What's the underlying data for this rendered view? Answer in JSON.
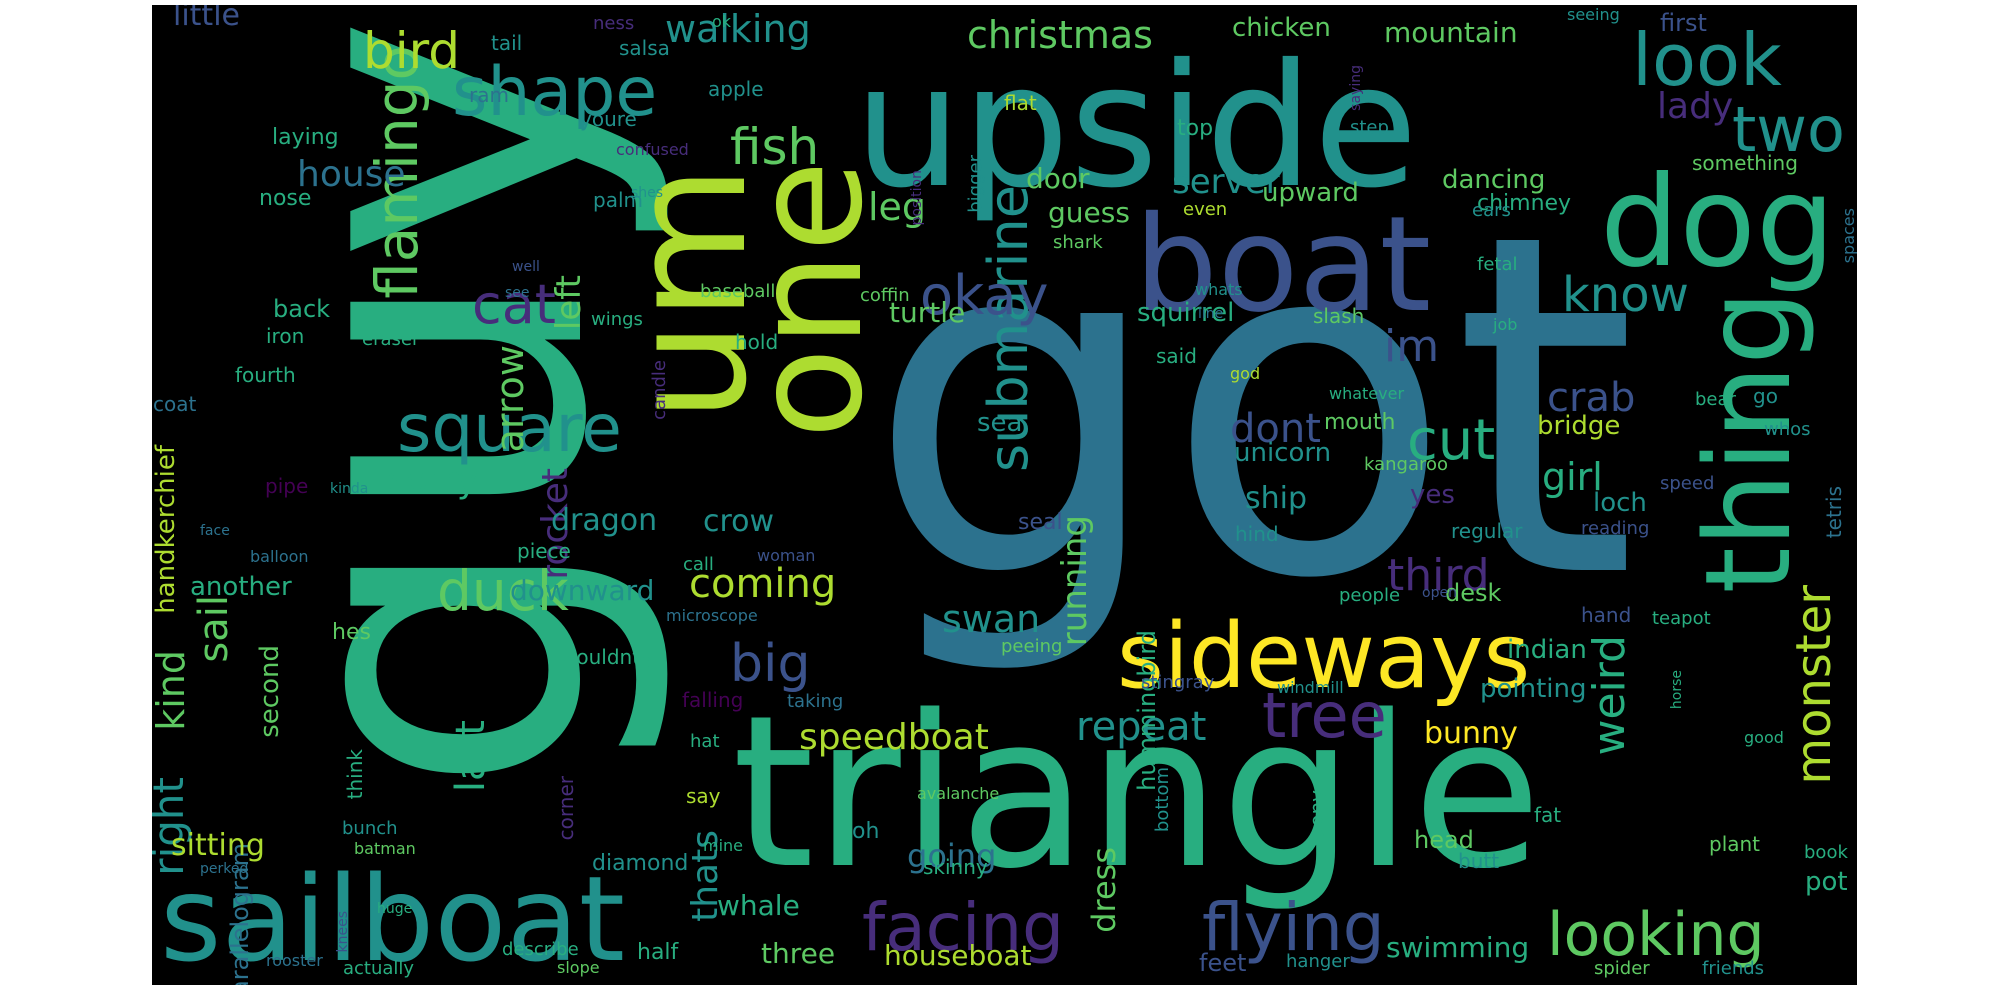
{
  "word_cloud": {
    "background": "#000000",
    "palette": [
      "#440154",
      "#472d7b",
      "#3b528b",
      "#2c728e",
      "#21918c",
      "#28ae80",
      "#5ec962",
      "#addc30",
      "#fde725"
    ],
    "words": [
      {
        "text": "got"
      },
      {
        "text": "guy"
      },
      {
        "text": "upside"
      },
      {
        "text": "triangle"
      },
      {
        "text": "um"
      },
      {
        "text": "one"
      },
      {
        "text": "boat"
      },
      {
        "text": "dog"
      },
      {
        "text": "thing"
      },
      {
        "text": "sailboat"
      },
      {
        "text": "sideways"
      },
      {
        "text": "look"
      },
      {
        "text": "two"
      },
      {
        "text": "shape"
      },
      {
        "text": "square"
      },
      {
        "text": "flamingo"
      },
      {
        "text": "facing"
      },
      {
        "text": "flying"
      },
      {
        "text": "looking"
      },
      {
        "text": "submarine"
      },
      {
        "text": "okay"
      },
      {
        "text": "fish"
      },
      {
        "text": "bird"
      },
      {
        "text": "cat"
      },
      {
        "text": "duck"
      },
      {
        "text": "big"
      },
      {
        "text": "tree"
      },
      {
        "text": "cut"
      },
      {
        "text": "know"
      },
      {
        "text": "monster"
      },
      {
        "text": "weird"
      },
      {
        "text": "walking"
      },
      {
        "text": "christmas"
      },
      {
        "text": "im"
      },
      {
        "text": "right"
      },
      {
        "text": "kind"
      },
      {
        "text": "sail"
      },
      {
        "text": "house"
      },
      {
        "text": "arrow"
      },
      {
        "text": "left"
      },
      {
        "text": "last"
      },
      {
        "text": "dont"
      },
      {
        "text": "crab"
      },
      {
        "text": "third"
      },
      {
        "text": "coming"
      },
      {
        "text": "speedboat"
      },
      {
        "text": "repeat"
      },
      {
        "text": "swan"
      },
      {
        "text": "running"
      },
      {
        "text": "thats"
      },
      {
        "text": "rocket"
      },
      {
        "text": "sorry"
      },
      {
        "text": "girl"
      },
      {
        "text": "server"
      },
      {
        "text": "leg"
      },
      {
        "text": "lady"
      },
      {
        "text": "little"
      },
      {
        "text": "mountain"
      },
      {
        "text": "chicken"
      },
      {
        "text": "door"
      },
      {
        "text": "guess"
      },
      {
        "text": "upward"
      },
      {
        "text": "dancing"
      },
      {
        "text": "chimney"
      },
      {
        "text": "turtle"
      },
      {
        "text": "squirrel"
      },
      {
        "text": "unicorn"
      },
      {
        "text": "ship"
      },
      {
        "text": "bridge"
      },
      {
        "text": "loch"
      },
      {
        "text": "yes"
      },
      {
        "text": "sea"
      },
      {
        "text": "crow"
      },
      {
        "text": "dragon"
      },
      {
        "text": "downward"
      },
      {
        "text": "another"
      },
      {
        "text": "second"
      },
      {
        "text": "handkerchief"
      },
      {
        "text": "parallelogram"
      },
      {
        "text": "sitting"
      },
      {
        "text": "going"
      },
      {
        "text": "dress"
      },
      {
        "text": "whale"
      },
      {
        "text": "three"
      },
      {
        "text": "houseboat"
      },
      {
        "text": "swimming"
      },
      {
        "text": "bunny"
      },
      {
        "text": "pointing"
      },
      {
        "text": "indian"
      },
      {
        "text": "desk"
      },
      {
        "text": "head"
      },
      {
        "text": "pot"
      },
      {
        "text": "feet"
      },
      {
        "text": "half"
      },
      {
        "text": "diamond"
      },
      {
        "text": "hummingbird"
      },
      {
        "text": "mouth"
      },
      {
        "text": "kangaroo"
      },
      {
        "text": "regular"
      },
      {
        "text": "hind"
      },
      {
        "text": "first"
      },
      {
        "text": "something"
      },
      {
        "text": "laying"
      },
      {
        "text": "nose"
      },
      {
        "text": "palm"
      },
      {
        "text": "apple"
      },
      {
        "text": "youre"
      },
      {
        "text": "tail"
      },
      {
        "text": "ram"
      },
      {
        "text": "back"
      },
      {
        "text": "iron"
      },
      {
        "text": "eraser"
      },
      {
        "text": "candle"
      },
      {
        "text": "baseball"
      },
      {
        "text": "wings"
      },
      {
        "text": "hold"
      },
      {
        "text": "said"
      },
      {
        "text": "slash"
      },
      {
        "text": "coffin"
      },
      {
        "text": "shark"
      },
      {
        "text": "fetal"
      },
      {
        "text": "ears"
      },
      {
        "text": "even"
      },
      {
        "text": "top"
      },
      {
        "text": "flat"
      },
      {
        "text": "bigger"
      },
      {
        "text": "step"
      },
      {
        "text": "spaces"
      },
      {
        "text": "saying"
      },
      {
        "text": "confused"
      },
      {
        "text": "position"
      },
      {
        "text": "seeing"
      },
      {
        "text": "ok"
      },
      {
        "text": "ness"
      },
      {
        "text": "salsa"
      },
      {
        "text": "shes"
      },
      {
        "text": "well"
      },
      {
        "text": "see"
      },
      {
        "text": "whats"
      },
      {
        "text": "line"
      },
      {
        "text": "job"
      },
      {
        "text": "god"
      },
      {
        "text": "whatever"
      },
      {
        "text": "whos"
      },
      {
        "text": "bear"
      },
      {
        "text": "go"
      },
      {
        "text": "tetris"
      },
      {
        "text": "speed"
      },
      {
        "text": "reading"
      },
      {
        "text": "seal"
      },
      {
        "text": "piece"
      },
      {
        "text": "call"
      },
      {
        "text": "woman"
      },
      {
        "text": "people"
      },
      {
        "text": "open"
      },
      {
        "text": "microscope"
      },
      {
        "text": "wouldnt"
      },
      {
        "text": "hes"
      },
      {
        "text": "air"
      },
      {
        "text": "falling"
      },
      {
        "text": "taking"
      },
      {
        "text": "hat"
      },
      {
        "text": "stingray"
      },
      {
        "text": "windmill"
      },
      {
        "text": "hand"
      },
      {
        "text": "teapot"
      },
      {
        "text": "horse"
      },
      {
        "text": "good"
      },
      {
        "text": "peeing"
      },
      {
        "text": "think"
      },
      {
        "text": "corner"
      },
      {
        "text": "say"
      },
      {
        "text": "avalanche"
      },
      {
        "text": "oh"
      },
      {
        "text": "mine"
      },
      {
        "text": "skinny"
      },
      {
        "text": "bottom"
      },
      {
        "text": "pony"
      },
      {
        "text": "fat"
      },
      {
        "text": "butt"
      },
      {
        "text": "plant"
      },
      {
        "text": "book"
      },
      {
        "text": "bunch"
      },
      {
        "text": "batman"
      },
      {
        "text": "perked"
      },
      {
        "text": "knees"
      },
      {
        "text": "huge"
      },
      {
        "text": "rooster"
      },
      {
        "text": "actually"
      },
      {
        "text": "describe"
      },
      {
        "text": "slope"
      },
      {
        "text": "hanger"
      },
      {
        "text": "spider"
      },
      {
        "text": "friends"
      },
      {
        "text": "pipe"
      },
      {
        "text": "kinda"
      },
      {
        "text": "face"
      },
      {
        "text": "balloon"
      },
      {
        "text": "fourth"
      },
      {
        "text": "coat"
      }
    ]
  }
}
